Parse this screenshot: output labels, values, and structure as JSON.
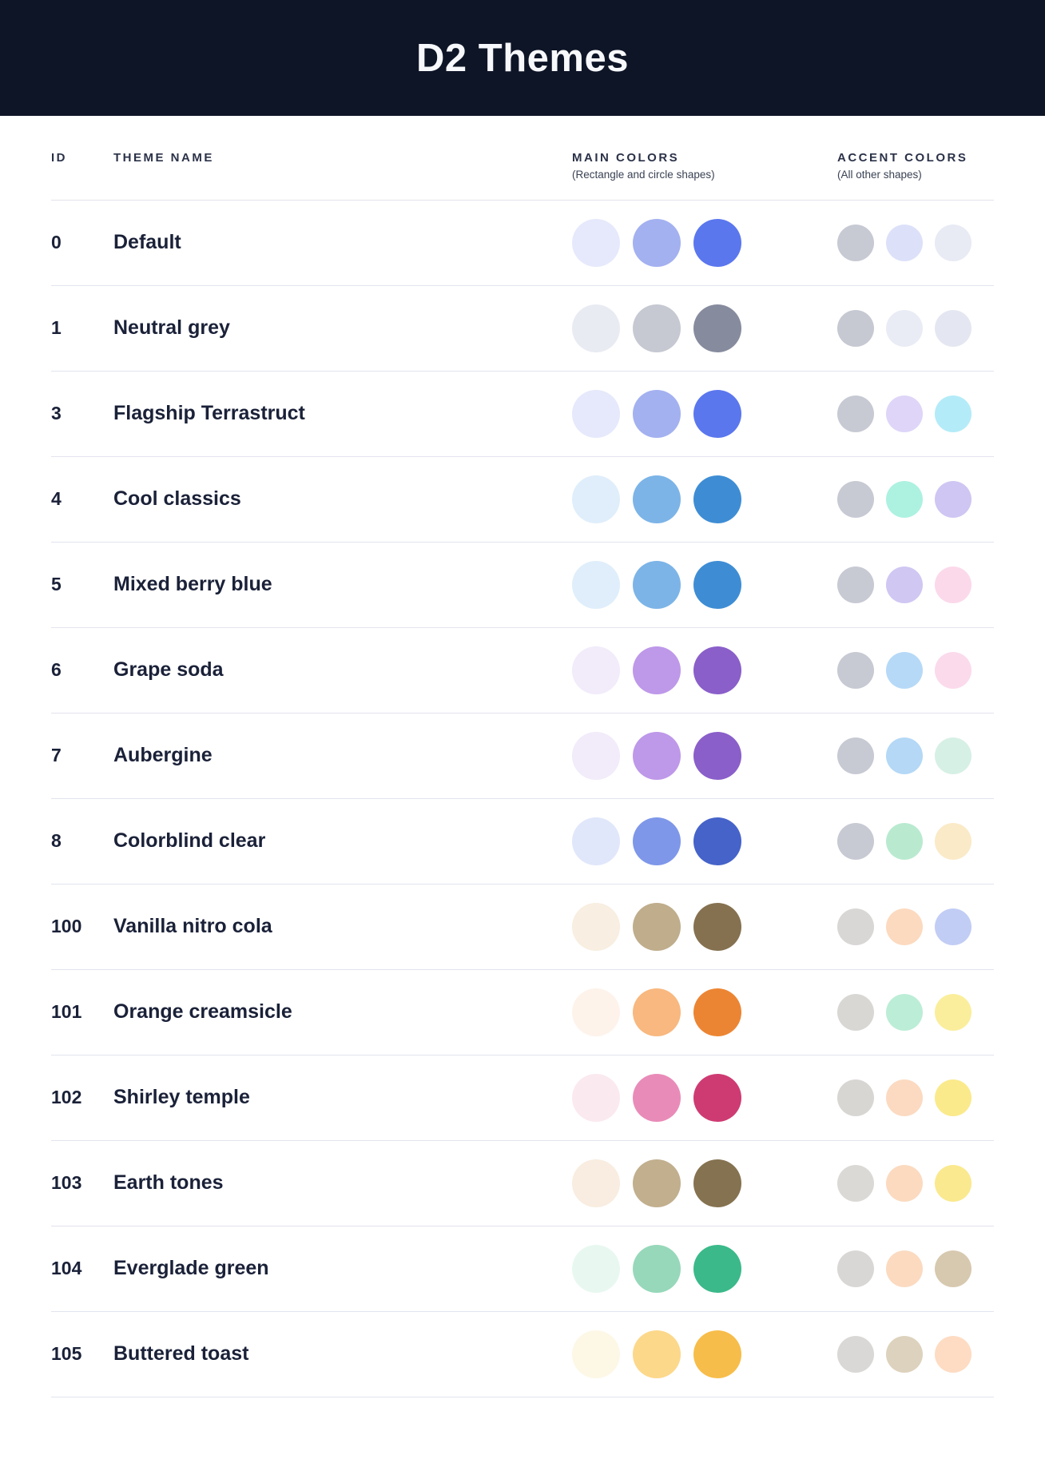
{
  "header": {
    "title": "D2 Themes",
    "background": "#0E1527"
  },
  "columns": {
    "id_label": "ID",
    "name_label": "THEME NAME",
    "main_label": "MAIN COLORS",
    "main_sub": "(Rectangle and circle shapes)",
    "accent_label": "ACCENT COLORS",
    "accent_sub": "(All other shapes)"
  },
  "themes": [
    {
      "id": "0",
      "name": "Default",
      "main": [
        "#E6E9FB",
        "#A3B1F0",
        "#5B77EE"
      ],
      "accent": [
        "#C7C9D3",
        "#DCE1F9",
        "#E8EAF4"
      ]
    },
    {
      "id": "1",
      "name": "Neutral grey",
      "main": [
        "#E9EBF3",
        "#C6C8D2",
        "#868B9E"
      ],
      "accent": [
        "#C6C8D2",
        "#E9ECF5",
        "#E4E7F1"
      ]
    },
    {
      "id": "3",
      "name": "Flagship Terrastruct",
      "main": [
        "#E6E9FB",
        "#A3B1F0",
        "#5B77EE"
      ],
      "accent": [
        "#C7C9D3",
        "#DED5F8",
        "#B4EBF8"
      ]
    },
    {
      "id": "4",
      "name": "Cool classics",
      "main": [
        "#DFEEFA",
        "#7CB4E7",
        "#3E8DD4"
      ],
      "accent": [
        "#C7C9D3",
        "#ADF1E1",
        "#CFC6F3"
      ]
    },
    {
      "id": "5",
      "name": "Mixed berry blue",
      "main": [
        "#DFEEFA",
        "#7CB4E7",
        "#3E8DD4"
      ],
      "accent": [
        "#C7C9D3",
        "#D0C7F3",
        "#FBD9EA"
      ]
    },
    {
      "id": "6",
      "name": "Grape soda",
      "main": [
        "#F1EBFA",
        "#BE98E9",
        "#8A5FC9"
      ],
      "accent": [
        "#C7C9D3",
        "#B6D9F7",
        "#FBDAEC"
      ]
    },
    {
      "id": "7",
      "name": "Aubergine",
      "main": [
        "#F1EBFA",
        "#BE98E9",
        "#8A5FC9"
      ],
      "accent": [
        "#C7C9D3",
        "#B4D8F6",
        "#D6F0E5"
      ]
    },
    {
      "id": "8",
      "name": "Colorblind clear",
      "main": [
        "#E0E7FA",
        "#7E97E9",
        "#4563C9"
      ],
      "accent": [
        "#C7C9D3",
        "#B9EAD0",
        "#FAEAC7"
      ]
    },
    {
      "id": "100",
      "name": "Vanilla nitro cola",
      "main": [
        "#F8EEE1",
        "#BFAD8C",
        "#857150"
      ],
      "accent": [
        "#D8D7D5",
        "#FCDABF",
        "#C2CDF5"
      ]
    },
    {
      "id": "101",
      "name": "Orange creamsicle",
      "main": [
        "#FDF3EB",
        "#F8B87F",
        "#EC8533"
      ],
      "accent": [
        "#D8D7D4",
        "#BCEDD7",
        "#FAEE9C"
      ]
    },
    {
      "id": "102",
      "name": "Shirley temple",
      "main": [
        "#FBE9F0",
        "#E98BB8",
        "#CE3B72"
      ],
      "accent": [
        "#D8D6D3",
        "#FBDAC1",
        "#FAEA8B"
      ]
    },
    {
      "id": "103",
      "name": "Earth tones",
      "main": [
        "#F8EDE0",
        "#C1AF8E",
        "#857250"
      ],
      "accent": [
        "#DAD9D6",
        "#FBDAC0",
        "#FAE98E"
      ]
    },
    {
      "id": "104",
      "name": "Everglade green",
      "main": [
        "#E8F8F1",
        "#97D8BA",
        "#3BB98A"
      ],
      "accent": [
        "#D8D7D5",
        "#FBDAC0",
        "#D7C9AF"
      ]
    },
    {
      "id": "105",
      "name": "Buttered toast",
      "main": [
        "#FDF7E6",
        "#FCD88B",
        "#F7BD4A"
      ],
      "accent": [
        "#D9D8D6",
        "#DDD2BD",
        "#FDDCC3"
      ]
    }
  ]
}
